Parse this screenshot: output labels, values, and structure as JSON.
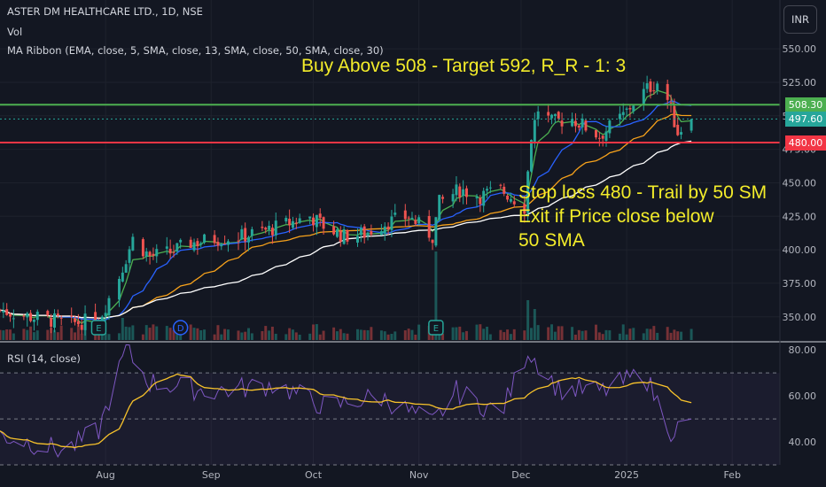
{
  "header": {
    "symbol": "ASTER DM HEALTHCARE LTD., 1D, NSE",
    "vol": "Vol",
    "ma_ribbon": "MA Ribbon (EMA, close, 5, SMA, close, 13, SMA, close, 50, SMA, close, 30)",
    "currency": "INR"
  },
  "annotations": {
    "buy": "Buy Above 508 - Target 592, R_R - 1: 3",
    "stop1": "Stop loss 480 - Trail by 50 SM",
    "stop2": "Exit if Price close below",
    "stop3": "50 SMA"
  },
  "levels": {
    "resistance": {
      "value": 508.3,
      "label": "508.30",
      "color": "#4caf50"
    },
    "current": {
      "value": 497.6,
      "label": "497.60",
      "color": "#26a69a"
    },
    "stop": {
      "value": 480,
      "label": "480.00",
      "color": "#f23645"
    }
  },
  "colors": {
    "up": "#26a69a",
    "down": "#ef5350",
    "ema5": "#4caf50",
    "sma13": "#2962ff",
    "sma30": "#f7a21b",
    "sma50": "#ffffff",
    "rsi": "#7e57c2",
    "rsi_ma": "#f7c22b"
  },
  "events": [
    {
      "label": "E",
      "date": "2024-07-30"
    },
    {
      "label": "D",
      "date": "2024-08-23"
    },
    {
      "label": "E",
      "date": "2024-11-06"
    }
  ],
  "rsi": {
    "label": "RSI (14, close)",
    "ylim": [
      30,
      82
    ],
    "ticks": [
      "80.00",
      "60.00",
      "40.00"
    ],
    "bands": [
      70,
      50,
      30
    ]
  },
  "chart_data": {
    "type": "candlestick",
    "title": "ASTER DM HEALTHCARE LTD., 1D, NSE",
    "ylim": [
      332,
      560
    ],
    "y_ticks": [
      "550.00",
      "525.00",
      "500.00",
      "475.00",
      "450.00",
      "425.00",
      "400.00",
      "375.00",
      "350.00"
    ],
    "x_ticks": [
      {
        "label": "Aug",
        "date": "2024-08-01"
      },
      {
        "label": "Sep",
        "date": "2024-09-01"
      },
      {
        "label": "Oct",
        "date": "2024-10-01"
      },
      {
        "label": "Nov",
        "date": "2024-11-01"
      },
      {
        "label": "Dec",
        "date": "2024-12-01"
      },
      {
        "label": "2025",
        "date": "2025-01-01"
      },
      {
        "label": "Feb",
        "date": "2025-02-01"
      }
    ],
    "close_path": [
      [
        "2024-07-01",
        355
      ],
      [
        "2024-07-10",
        350
      ],
      [
        "2024-07-22",
        345
      ],
      [
        "2024-07-30",
        348
      ],
      [
        "2024-08-05",
        380
      ],
      [
        "2024-08-09",
        408
      ],
      [
        "2024-08-14",
        395
      ],
      [
        "2024-08-20",
        398
      ],
      [
        "2024-08-26",
        405
      ],
      [
        "2024-09-02",
        408
      ],
      [
        "2024-09-10",
        410
      ],
      [
        "2024-09-18",
        415
      ],
      [
        "2024-09-24",
        420
      ],
      [
        "2024-09-30",
        425
      ],
      [
        "2024-10-04",
        418
      ],
      [
        "2024-10-10",
        410
      ],
      [
        "2024-10-16",
        412
      ],
      [
        "2024-10-22",
        420
      ],
      [
        "2024-10-29",
        425
      ],
      [
        "2024-11-05",
        410
      ],
      [
        "2024-11-07",
        435
      ],
      [
        "2024-11-13",
        445
      ],
      [
        "2024-11-19",
        440
      ],
      [
        "2024-11-25",
        445
      ],
      [
        "2024-11-29",
        438
      ],
      [
        "2024-12-02",
        432
      ],
      [
        "2024-12-04",
        485
      ],
      [
        "2024-12-06",
        505
      ],
      [
        "2024-12-10",
        495
      ],
      [
        "2024-12-16",
        498
      ],
      [
        "2024-12-24",
        485
      ],
      [
        "2024-12-31",
        500
      ],
      [
        "2025-01-03",
        510
      ],
      [
        "2025-01-07",
        520
      ],
      [
        "2025-01-10",
        525
      ],
      [
        "2025-01-13",
        512
      ],
      [
        "2025-01-16",
        488
      ],
      [
        "2025-01-20",
        497.6
      ]
    ],
    "volume_spikes": [
      [
        "2024-11-06",
        1.0
      ],
      [
        "2024-12-03",
        0.45
      ],
      [
        "2024-12-05",
        0.35
      ],
      [
        "2024-08-06",
        0.25
      ]
    ],
    "rsi_path": [
      [
        "2024-07-01",
        43
      ],
      [
        "2024-07-20",
        36
      ],
      [
        "2024-07-30",
        45
      ],
      [
        "2024-08-07",
        80
      ],
      [
        "2024-08-14",
        66
      ],
      [
        "2024-09-01",
        62
      ],
      [
        "2024-09-20",
        65
      ],
      [
        "2024-10-05",
        55
      ],
      [
        "2024-10-20",
        60
      ],
      [
        "2024-11-05",
        48
      ],
      [
        "2024-11-12",
        62
      ],
      [
        "2024-11-25",
        52
      ],
      [
        "2024-12-03",
        80
      ],
      [
        "2024-12-12",
        63
      ],
      [
        "2024-12-25",
        62
      ],
      [
        "2025-01-06",
        70
      ],
      [
        "2025-01-14",
        45
      ],
      [
        "2025-01-20",
        48
      ]
    ]
  }
}
